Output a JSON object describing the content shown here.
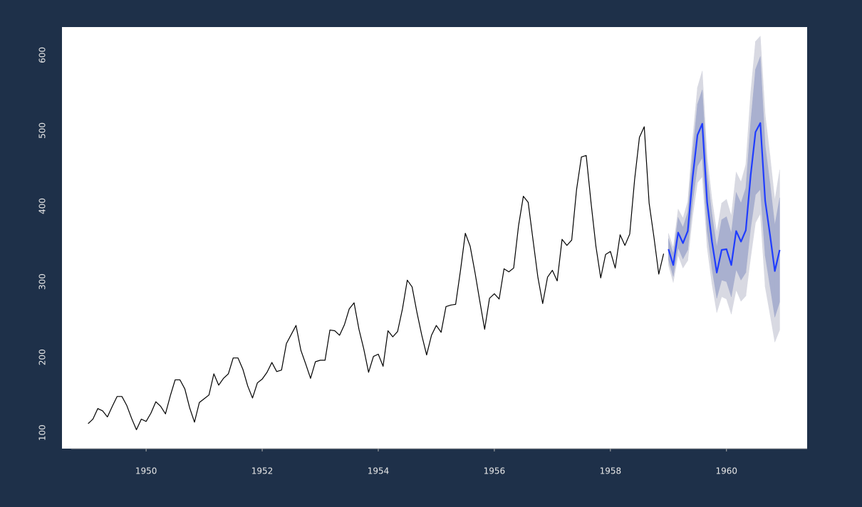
{
  "chart_data": {
    "type": "line",
    "xlim": [
      1948.55,
      1961.39
    ],
    "ylim": [
      79,
      637
    ],
    "xticks": [
      1950,
      1952,
      1954,
      1956,
      1958,
      1960
    ],
    "yticks": [
      100,
      200,
      300,
      400,
      500,
      600
    ],
    "series": [
      {
        "color": "#000000",
        "x": [
          1949,
          1949.083,
          1949.167,
          1949.25,
          1949.333,
          1949.417,
          1949.5,
          1949.583,
          1949.667,
          1949.75,
          1949.833,
          1949.917,
          1950,
          1950.083,
          1950.167,
          1950.25,
          1950.333,
          1950.417,
          1950.5,
          1950.583,
          1950.667,
          1950.75,
          1950.833,
          1950.917,
          1951,
          1951.083,
          1951.167,
          1951.25,
          1951.333,
          1951.417,
          1951.5,
          1951.583,
          1951.667,
          1951.75,
          1951.833,
          1951.917,
          1952,
          1952.083,
          1952.167,
          1952.25,
          1952.333,
          1952.417,
          1952.5,
          1952.583,
          1952.667,
          1952.75,
          1952.833,
          1952.917,
          1953,
          1953.083,
          1953.167,
          1953.25,
          1953.333,
          1953.417,
          1953.5,
          1953.583,
          1953.667,
          1953.75,
          1953.833,
          1953.917,
          1954,
          1954.083,
          1954.167,
          1954.25,
          1954.333,
          1954.417,
          1954.5,
          1954.583,
          1954.667,
          1954.75,
          1954.833,
          1954.917,
          1955,
          1955.083,
          1955.167,
          1955.25,
          1955.333,
          1955.417,
          1955.5,
          1955.583,
          1955.667,
          1955.75,
          1955.833,
          1955.917,
          1956,
          1956.083,
          1956.167,
          1956.25,
          1956.333,
          1956.417,
          1956.5,
          1956.583,
          1956.667,
          1956.75,
          1956.833,
          1956.917,
          1957,
          1957.083,
          1957.167,
          1957.25,
          1957.333,
          1957.417,
          1957.5,
          1957.583,
          1957.667,
          1957.75,
          1957.833,
          1957.917,
          1958,
          1958.083,
          1958.167,
          1958.25,
          1958.333,
          1958.417,
          1958.5,
          1958.583,
          1958.667,
          1958.75,
          1958.833,
          1958.917
        ],
        "values": [
          112,
          118,
          132,
          129,
          121,
          135,
          148,
          148,
          136,
          119,
          104,
          118,
          115,
          126,
          141,
          135,
          125,
          149,
          170,
          170,
          158,
          133,
          114,
          140,
          145,
          150,
          178,
          163,
          172,
          178,
          199,
          199,
          184,
          162,
          146,
          166,
          171,
          180,
          193,
          181,
          183,
          218,
          230,
          242,
          209,
          191,
          172,
          194,
          196,
          196,
          236,
          235,
          229,
          243,
          264,
          272,
          237,
          211,
          180,
          201,
          204,
          188,
          235,
          227,
          234,
          264,
          302,
          293,
          259,
          229,
          203,
          229,
          242,
          233,
          267,
          269,
          270,
          315,
          364,
          347,
          312,
          274,
          237,
          278,
          284,
          277,
          317,
          313,
          318,
          374,
          413,
          405,
          355,
          306,
          271,
          306,
          315,
          301,
          356,
          348,
          355,
          422,
          465,
          467,
          404,
          347,
          305,
          336,
          340,
          318,
          362,
          348,
          363,
          435,
          491,
          505,
          404,
          359,
          310,
          337
        ]
      },
      {
        "color": "#1f3cff",
        "band80_color": "#a9b0cf",
        "band95_color": "#d8d9e2",
        "x": [
          1959,
          1959.083,
          1959.167,
          1959.25,
          1959.333,
          1959.417,
          1959.5,
          1959.583,
          1959.667,
          1959.75,
          1959.833,
          1959.917,
          1960,
          1960.083,
          1960.167,
          1960.25,
          1960.333,
          1960.417,
          1960.5,
          1960.583,
          1960.667,
          1960.75,
          1960.833,
          1960.917
        ],
        "values": [
          343,
          322,
          365,
          351,
          367,
          438,
          494,
          509,
          405,
          353,
          312,
          342,
          343,
          322,
          367,
          353,
          368,
          441,
          498,
          510,
          407,
          362,
          314,
          342
        ],
        "lo80": [
          329,
          307,
          345,
          330,
          342,
          405,
          453,
          464,
          366,
          317,
          278,
          302,
          300,
          280,
          316,
          302,
          312,
          371,
          415,
          422,
          334,
          294,
          253,
          273
        ],
        "hi80": [
          357,
          337,
          385,
          372,
          392,
          471,
          535,
          554,
          444,
          389,
          346,
          382,
          386,
          364,
          418,
          404,
          424,
          511,
          581,
          598,
          480,
          430,
          375,
          411
        ],
        "lo95": [
          322,
          299,
          335,
          318,
          328,
          387,
          431,
          439,
          345,
          297,
          259,
          280,
          277,
          257,
          289,
          274,
          281,
          332,
          378,
          390,
          293,
          257,
          220,
          236
        ],
        "hi95": [
          364,
          345,
          396,
          384,
          406,
          489,
          557,
          579,
          465,
          409,
          365,
          404,
          409,
          387,
          445,
          432,
          455,
          550,
          618,
          625,
          521,
          467,
          408,
          448
        ]
      }
    ]
  }
}
